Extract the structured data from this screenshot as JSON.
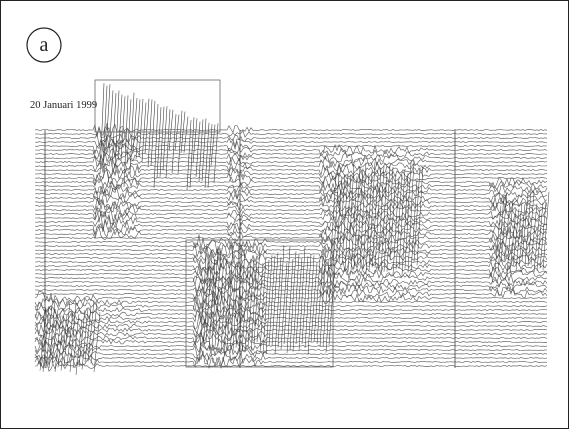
{
  "panel_label": "a",
  "caption": "20 Januari 1999"
}
